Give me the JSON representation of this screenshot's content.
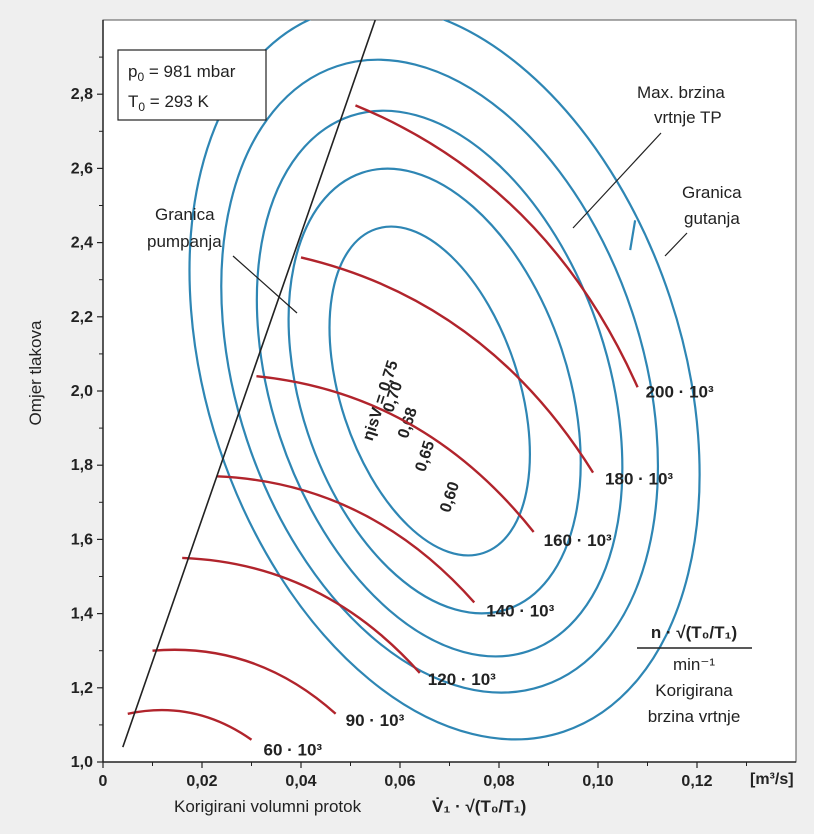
{
  "chart_data": {
    "type": "line",
    "title": "",
    "xlabel": "Korigirani volumni protok",
    "xlabel_formula": "V̇₁ · √(T₀/T₁)",
    "ylabel": "Omjer tlakova",
    "x_unit": "[m³/s]",
    "xlim": [
      0,
      0.14
    ],
    "ylim": [
      1.0,
      3.0
    ],
    "x_ticks": [
      "0",
      "0,02",
      "0,04",
      "0,06",
      "0,08",
      "0,10",
      "0,12"
    ],
    "y_ticks": [
      "1,0",
      "1,2",
      "1,4",
      "1,6",
      "1,8",
      "2,0",
      "2,2",
      "2,4",
      "2,6",
      "2,8"
    ],
    "grid": false,
    "conditions": {
      "line1_main": "p",
      "line1_sub": "0",
      "line1_rest": " = 981 mbar",
      "line2_main": "T",
      "line2_sub": "0",
      "line2_rest": " = 293 K"
    },
    "annotations": {
      "surge_line": [
        "Granica",
        "pumpanja"
      ],
      "choke_line": [
        "Granica",
        "gutanja"
      ],
      "max_speed": [
        "Max. brzina",
        "vrtnje TP"
      ],
      "speed_legend_top": "n · √(T₀/T₁)",
      "speed_legend_bottom": "min⁻¹",
      "speed_legend_caption": [
        "Korigirana",
        "brzina vrtnje"
      ]
    },
    "surge_line": [
      [
        0.004,
        1.04
      ],
      [
        0.055,
        3.0
      ]
    ],
    "choke_line": [
      [
        0.1065,
        2.38
      ],
      [
        0.1075,
        2.46
      ]
    ],
    "speed_lines": [
      {
        "label": "60 · 10³",
        "points": [
          [
            0.005,
            1.13
          ],
          [
            0.03,
            1.06
          ]
        ]
      },
      {
        "label": "90 · 10³",
        "points": [
          [
            0.01,
            1.3
          ],
          [
            0.047,
            1.13
          ]
        ]
      },
      {
        "label": "120 · 10³",
        "points": [
          [
            0.016,
            1.55
          ],
          [
            0.064,
            1.24
          ]
        ]
      },
      {
        "label": "140 · 10³",
        "points": [
          [
            0.023,
            1.77
          ],
          [
            0.075,
            1.43
          ]
        ]
      },
      {
        "label": "160 · 10³",
        "points": [
          [
            0.031,
            2.04
          ],
          [
            0.087,
            1.62
          ]
        ]
      },
      {
        "label": "180 · 10³",
        "points": [
          [
            0.04,
            2.36
          ],
          [
            0.099,
            1.78
          ]
        ]
      },
      {
        "label": "200 · 10³",
        "points": [
          [
            0.051,
            2.77
          ],
          [
            0.108,
            2.01
          ]
        ]
      }
    ],
    "efficiency_contours": [
      {
        "label": "ηisV = 0,75",
        "center": [
          0.066,
          2.0
        ],
        "rx": 0.018,
        "ry": 0.46
      },
      {
        "label": "0,70",
        "center": [
          0.067,
          2.0
        ],
        "rx": 0.027,
        "ry": 0.62
      },
      {
        "label": "0,68",
        "center": [
          0.068,
          2.02
        ],
        "rx": 0.034,
        "ry": 0.76
      },
      {
        "label": "0,65",
        "center": [
          0.068,
          2.04
        ],
        "rx": 0.041,
        "ry": 0.88
      },
      {
        "label": "0,60",
        "center": [
          0.069,
          2.05
        ],
        "rx": 0.048,
        "ry": 1.02
      }
    ]
  }
}
